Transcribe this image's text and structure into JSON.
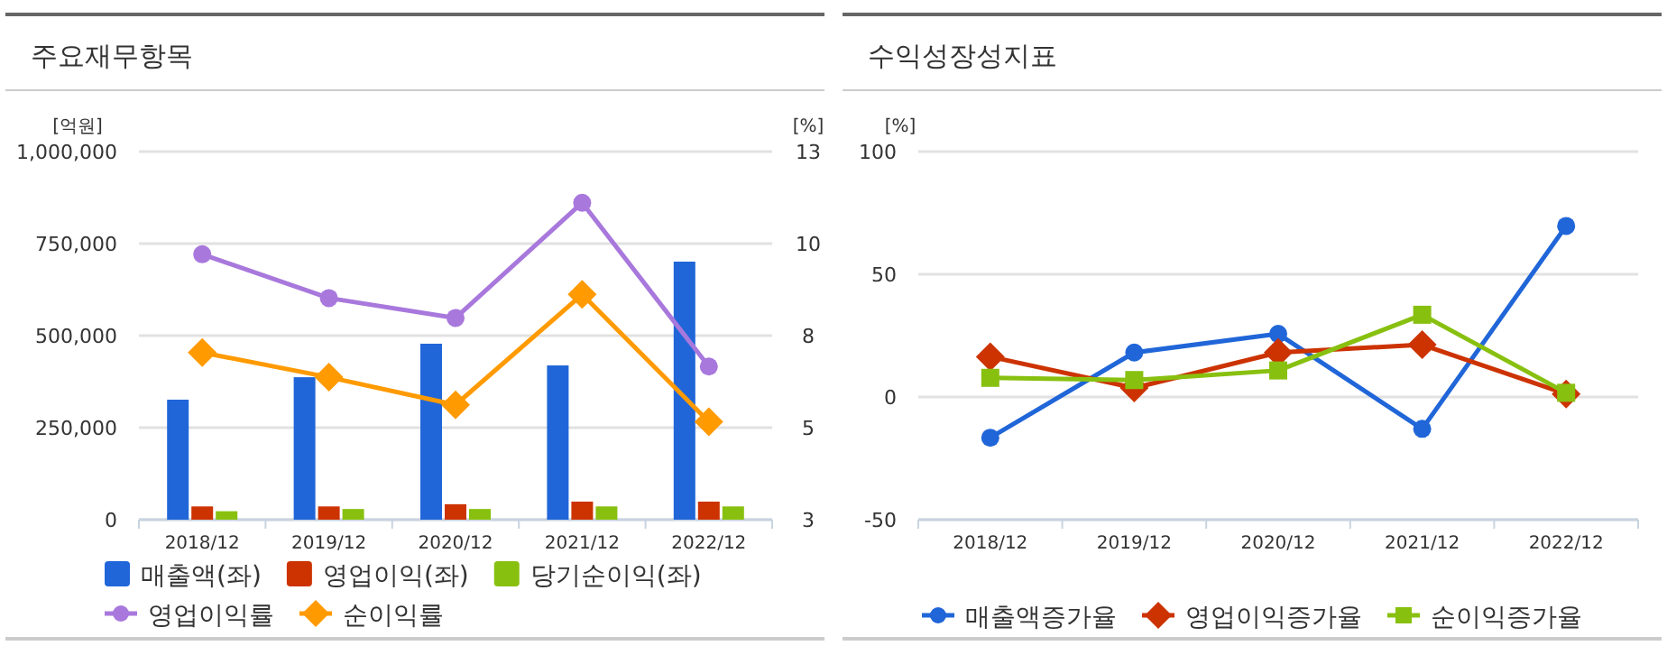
{
  "chart_data": [
    {
      "type": "bar",
      "title": "주요재무항목",
      "ylabel": "[억원]",
      "y2label": "[%]",
      "categories": [
        "2018/12",
        "2019/12",
        "2020/12",
        "2021/12",
        "2022/12"
      ],
      "ylim": [
        0,
        1000000
      ],
      "yticks": [
        {
          "value": 0,
          "label": "0"
        },
        {
          "value": 250000,
          "label": "250,000"
        },
        {
          "value": 500000,
          "label": "500,000"
        },
        {
          "value": 750000,
          "label": "750,000"
        },
        {
          "value": 1000000,
          "label": "1,000,000"
        }
      ],
      "y2lim": [
        3,
        13
      ],
      "y2ticks": [
        3,
        {
          "value": 5.5,
          "label": "5"
        },
        8,
        {
          "value": 10.5,
          "label": "10"
        },
        13
      ],
      "grid": "y",
      "legend": "bottom",
      "series": [
        {
          "name": "매출액(좌)",
          "color": "#2066d8",
          "values": [
            326000,
            387000,
            478000,
            419000,
            701000
          ]
        },
        {
          "name": "영업이익(좌)",
          "color": "#cc3300",
          "values": [
            36000,
            36000,
            42000,
            49000,
            49000
          ]
        },
        {
          "name": "당기순이익(좌)",
          "color": "#88c010",
          "values": [
            23000,
            29000,
            29000,
            36000,
            36000
          ]
        },
        {
          "name": "영업이익률",
          "type": "line",
          "axis": "y2",
          "marker": "circle",
          "color": "#a878dc",
          "values": [
            10.21,
            9.02,
            8.48,
            11.61,
            7.16
          ]
        },
        {
          "name": "순이익률",
          "type": "line",
          "axis": "y2",
          "marker": "diamond",
          "color": "#ff9a00",
          "values": [
            7.54,
            6.87,
            6.12,
            9.12,
            5.66
          ]
        }
      ]
    },
    {
      "type": "line",
      "title": "수익성장성지표",
      "ylabel": "[%]",
      "categories": [
        "2018/12",
        "2019/12",
        "2020/12",
        "2021/12",
        "2022/12"
      ],
      "ylim": [
        -50,
        100
      ],
      "yticks": [
        -50,
        0,
        50,
        100
      ],
      "grid": "y",
      "legend": "bottom",
      "series": [
        {
          "name": "매출액증가율",
          "marker": "circle",
          "color": "#2066d8",
          "values": [
            -16.6,
            18.1,
            25.7,
            -13,
            69.7
          ]
        },
        {
          "name": "영업이익증가율",
          "marker": "diamond",
          "color": "#cc3300",
          "values": [
            16.4,
            3.7,
            18.1,
            21.3,
            1.2
          ]
        },
        {
          "name": "순이익증가율",
          "marker": "square",
          "color": "#88c010",
          "values": [
            7.8,
            6.9,
            10.8,
            33.5,
            1.7
          ]
        }
      ]
    }
  ]
}
